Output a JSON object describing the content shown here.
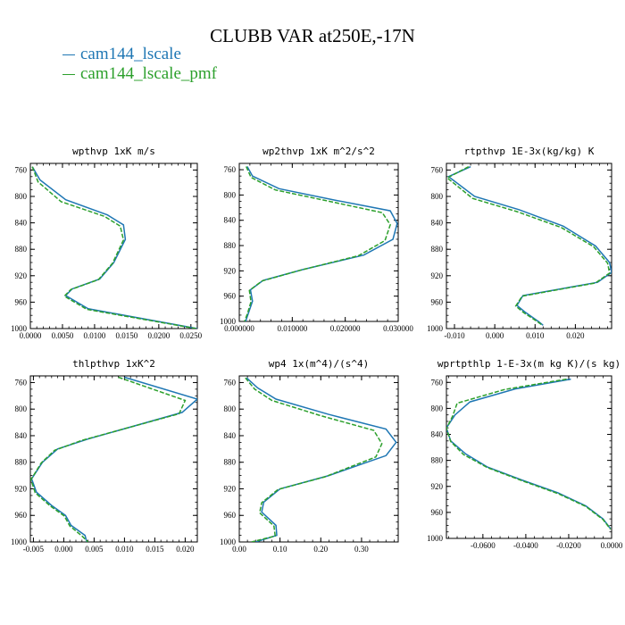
{
  "title": "CLUBB VAR at250E,-17N",
  "legend": [
    {
      "label": "cam144_lscale",
      "color": "#1f77b4"
    },
    {
      "label": "cam144_lscale_pmf",
      "color": "#2ca02c"
    }
  ],
  "chart_data": [
    {
      "type": "line",
      "title": "wpthvp   1xK m/s",
      "xlim": [
        0,
        0.026
      ],
      "ylim": [
        1000,
        750
      ],
      "xticks": [
        0,
        0.005,
        0.01,
        0.015,
        0.02,
        0.025
      ],
      "xtick_labels": [
        "0.0000",
        "0.0050",
        "0.0100",
        "0.0150",
        "0.0200",
        "0.0250"
      ],
      "yticks": [
        760,
        800,
        840,
        880,
        920,
        960,
        1000
      ],
      "series": [
        {
          "color": "#1f77b4",
          "x": [
            0.0003,
            0.0015,
            0.0055,
            0.012,
            0.0145,
            0.0148,
            0.013,
            0.0108,
            0.0065,
            0.0055,
            0.009,
            0.026
          ],
          "y": [
            755,
            775,
            805,
            828,
            843,
            865,
            900,
            925,
            940,
            950,
            970,
            1000
          ]
        },
        {
          "color": "#2ca02c",
          "x": [
            0.0003,
            0.0012,
            0.0048,
            0.0115,
            0.014,
            0.0145,
            0.0128,
            0.0106,
            0.0063,
            0.0053,
            0.0088,
            0.0258
          ],
          "y": [
            755,
            778,
            808,
            830,
            845,
            866,
            901,
            926,
            941,
            951,
            971,
            1000
          ]
        }
      ]
    },
    {
      "type": "line",
      "title": "wp2thvp   1xK m^2/s^2",
      "xlim": [
        0,
        0.03
      ],
      "ylim": [
        1000,
        750
      ],
      "xticks": [
        0,
        0.01,
        0.02,
        0.03
      ],
      "xtick_labels": [
        "0.000000",
        "0.010000",
        "0.020000",
        "0.030000"
      ],
      "yticks": [
        760,
        800,
        840,
        880,
        920,
        960,
        1000
      ],
      "series": [
        {
          "color": "#1f77b4",
          "x": [
            0.0015,
            0.0025,
            0.0075,
            0.018,
            0.0285,
            0.0298,
            0.029,
            0.0235,
            0.012,
            0.0045,
            0.0021,
            0.0025,
            0.0018,
            0.0012
          ],
          "y": [
            755,
            770,
            790,
            808,
            825,
            845,
            870,
            895,
            918,
            935,
            950,
            968,
            985,
            1000
          ]
        },
        {
          "color": "#2ca02c",
          "x": [
            0.0013,
            0.0022,
            0.0068,
            0.017,
            0.027,
            0.0285,
            0.0275,
            0.0225,
            0.0115,
            0.0043,
            0.0019,
            0.0022,
            0.0016,
            0.001
          ],
          "y": [
            755,
            772,
            792,
            810,
            828,
            847,
            872,
            896,
            919,
            936,
            951,
            969,
            986,
            1000
          ]
        }
      ]
    },
    {
      "type": "line",
      "title": "rtpthvp   1E-3x(kg/kg) K",
      "xlim": [
        -0.012,
        0.029
      ],
      "ylim": [
        1000,
        750
      ],
      "xticks": [
        -0.01,
        0,
        0.01,
        0.02
      ],
      "xtick_labels": [
        "-0.010",
        "0.000",
        "0.010",
        "0.020"
      ],
      "yticks": [
        760,
        800,
        840,
        880,
        920,
        960,
        1000
      ],
      "series": [
        {
          "color": "#1f77b4",
          "x": [
            -0.006,
            -0.0115,
            -0.005,
            0.006,
            0.017,
            0.025,
            0.0285,
            0.029,
            0.0255,
            0.007,
            0.0055,
            0.0075,
            0.011,
            0.012
          ],
          "y": [
            755,
            770,
            800,
            820,
            845,
            875,
            900,
            915,
            930,
            950,
            965,
            975,
            990,
            995
          ]
        },
        {
          "color": "#2ca02c",
          "x": [
            -0.0065,
            -0.0118,
            -0.0055,
            0.0055,
            0.0165,
            0.0245,
            0.028,
            0.0285,
            0.025,
            0.0068,
            0.0052,
            0.0072,
            0.0107,
            0.0118
          ],
          "y": [
            755,
            772,
            803,
            823,
            847,
            876,
            901,
            916,
            931,
            951,
            966,
            976,
            990,
            995
          ]
        }
      ]
    },
    {
      "type": "line",
      "title": "thlpthvp   1xK^2",
      "xlim": [
        -0.0055,
        0.022
      ],
      "ylim": [
        1000,
        750
      ],
      "xticks": [
        -0.005,
        0,
        0.005,
        0.01,
        0.015,
        0.02
      ],
      "xtick_labels": [
        "-0.005",
        "0.000",
        "0.005",
        "0.010",
        "0.015",
        "0.020"
      ],
      "yticks": [
        760,
        800,
        840,
        880,
        920,
        960,
        1000
      ],
      "series": [
        {
          "color": "#1f77b4",
          "x": [
            0.01,
            0.022,
            0.0195,
            0.004,
            -0.001,
            -0.0035,
            -0.0053,
            -0.0045,
            -0.002,
            0.0003,
            0.0012,
            0.0035,
            0.0038
          ],
          "y": [
            752,
            785,
            805,
            845,
            860,
            880,
            905,
            925,
            945,
            960,
            975,
            990,
            1000
          ]
        },
        {
          "color": "#2ca02c",
          "x": [
            0.009,
            0.02,
            0.019,
            0.003,
            -0.0015,
            -0.0037,
            -0.0054,
            -0.0047,
            -0.0022,
            0.0001,
            0.001,
            0.003,
            0.004
          ],
          "y": [
            752,
            787,
            807,
            847,
            862,
            881,
            906,
            926,
            946,
            961,
            976,
            991,
            1000
          ]
        }
      ]
    },
    {
      "type": "line",
      "title": "wp4   1x(m^4)/(s^4)",
      "xlim": [
        0,
        0.39
      ],
      "ylim": [
        1000,
        750
      ],
      "xticks": [
        0,
        0.1,
        0.2,
        0.3
      ],
      "xtick_labels": [
        "0.00",
        "0.10",
        "0.20",
        "0.30"
      ],
      "yticks": [
        760,
        800,
        840,
        880,
        920,
        960,
        1000
      ],
      "series": [
        {
          "color": "#1f77b4",
          "x": [
            0.018,
            0.045,
            0.09,
            0.22,
            0.36,
            0.385,
            0.36,
            0.22,
            0.1,
            0.06,
            0.055,
            0.09,
            0.092,
            0.04
          ],
          "y": [
            753,
            768,
            785,
            808,
            830,
            850,
            870,
            900,
            920,
            940,
            955,
            975,
            990,
            1000
          ]
        },
        {
          "color": "#2ca02c",
          "x": [
            0.015,
            0.038,
            0.08,
            0.2,
            0.33,
            0.35,
            0.335,
            0.21,
            0.095,
            0.055,
            0.05,
            0.085,
            0.088,
            0.03
          ],
          "y": [
            753,
            770,
            787,
            810,
            832,
            852,
            872,
            902,
            921,
            941,
            956,
            976,
            991,
            1000
          ]
        }
      ]
    },
    {
      "type": "line",
      "title": "wprtpthlp   1-E-3x(m kg K)/(s kg)",
      "xlim": [
        -0.077,
        0
      ],
      "ylim": [
        1000,
        750
      ],
      "xticks": [
        -0.06,
        -0.04,
        -0.02,
        0
      ],
      "xtick_labels": [
        "-0.0600",
        "-0.0400",
        "-0.0200",
        "0.0000"
      ],
      "yticks": [
        760,
        800,
        840,
        880,
        920,
        960,
        1000
      ],
      "series": [
        {
          "color": "#1f77b4",
          "x": [
            -0.019,
            -0.045,
            -0.066,
            -0.073,
            -0.077,
            -0.075,
            -0.068,
            -0.058,
            -0.042,
            -0.025,
            -0.012,
            -0.004,
            -0.0005
          ],
          "y": [
            755,
            770,
            790,
            810,
            830,
            850,
            870,
            890,
            910,
            930,
            950,
            970,
            985
          ]
        },
        {
          "color": "#2ca02c",
          "x": [
            -0.021,
            -0.05,
            -0.072,
            -0.074,
            -0.077,
            -0.075,
            -0.069,
            -0.058,
            -0.042,
            -0.025,
            -0.012,
            -0.004,
            -0.0005
          ],
          "y": [
            755,
            771,
            792,
            811,
            831,
            851,
            871,
            891,
            911,
            931,
            951,
            971,
            986
          ]
        }
      ]
    }
  ]
}
